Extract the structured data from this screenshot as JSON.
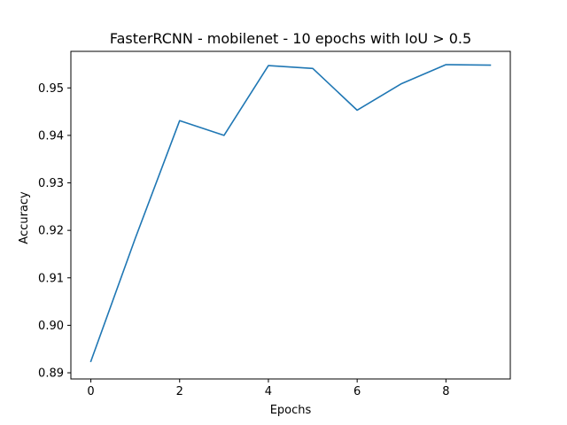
{
  "chart_data": {
    "type": "line",
    "title": "FasterRCNN - mobilenet - 10 epochs with IoU > 0.5",
    "xlabel": "Epochs",
    "ylabel": "Accuracy",
    "xlim": [
      -0.45,
      9.45
    ],
    "ylim": [
      0.8887,
      0.9577
    ],
    "grid": false,
    "x_ticks": [
      0,
      2,
      4,
      6,
      8
    ],
    "x_tick_labels": [
      "0",
      "2",
      "4",
      "6",
      "8"
    ],
    "y_ticks": [
      0.89,
      0.9,
      0.91,
      0.92,
      0.93,
      0.94,
      0.95
    ],
    "y_tick_labels": [
      "0.89",
      "0.90",
      "0.91",
      "0.92",
      "0.93",
      "0.94",
      "0.95"
    ],
    "series": [
      {
        "color": "#1f77b4",
        "x": [
          0,
          1,
          2,
          3,
          4,
          5,
          6,
          7,
          8,
          9
        ],
        "values": [
          0.8924,
          0.9183,
          0.9431,
          0.94,
          0.9547,
          0.9541,
          0.9453,
          0.9509,
          0.9549,
          0.9548
        ]
      }
    ]
  }
}
